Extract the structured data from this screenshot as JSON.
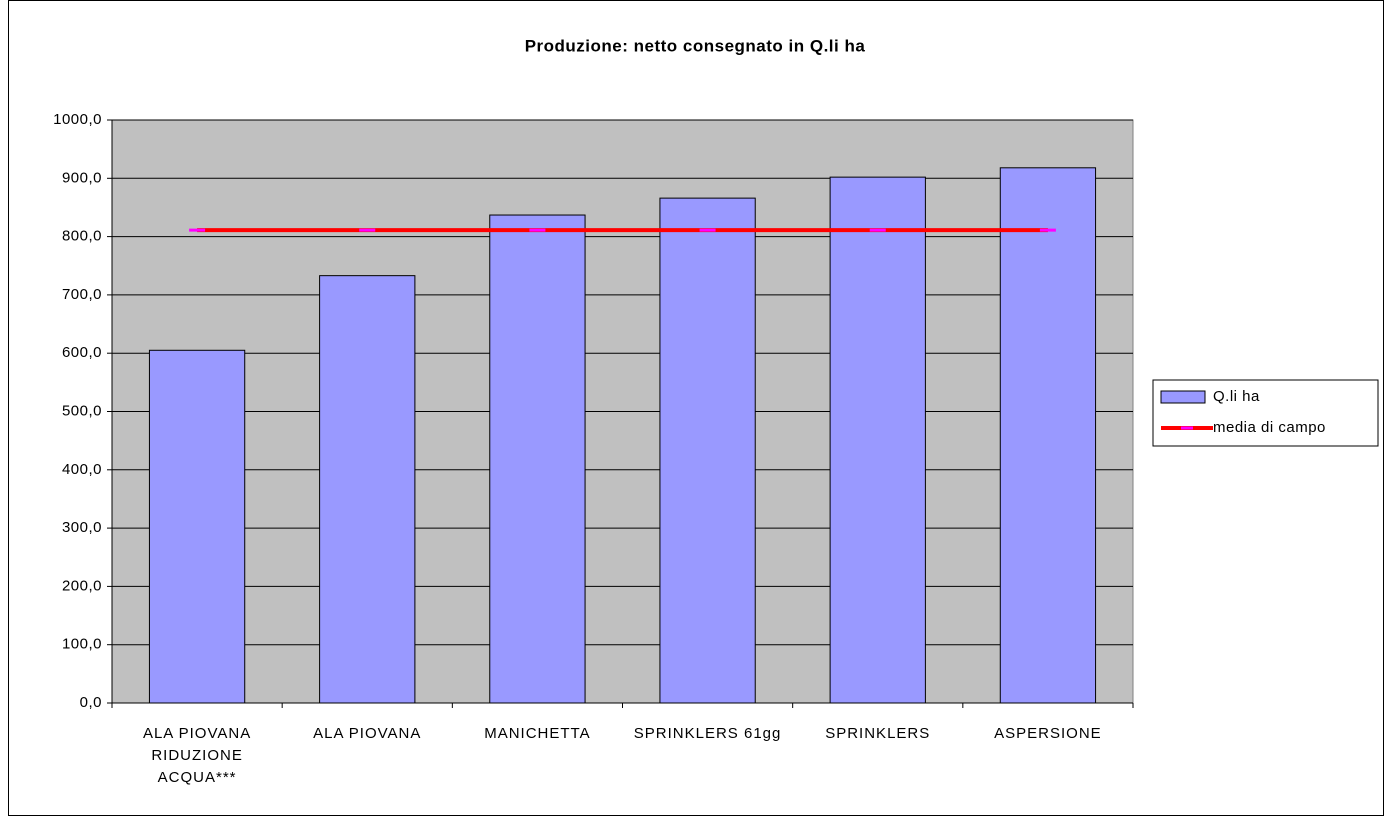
{
  "chart_data": {
    "type": "bar_line",
    "title": "Produzione: netto consegnato in Q.li ha",
    "categories": [
      "ALA PIOVANA RIDUZIONE ACQUA***",
      "ALA PIOVANA",
      "MANICHETTA",
      "SPRINKLERS 61gg",
      "SPRINKLERS",
      "ASPERSIONE"
    ],
    "series": [
      {
        "name": "Q.li ha",
        "type": "bar",
        "color": "#9999ff",
        "values": [
          605,
          733,
          837,
          866,
          902,
          918
        ]
      },
      {
        "name": "media di campo",
        "type": "line",
        "color": "#ff0000",
        "marker_color": "#ff00ff",
        "values": [
          811,
          811,
          811,
          811,
          811,
          811
        ]
      }
    ],
    "ylim": [
      0,
      1000
    ],
    "yticks": [
      {
        "value": 0,
        "label": "0,0"
      },
      {
        "value": 100,
        "label": "100,0"
      },
      {
        "value": 200,
        "label": "200,0"
      },
      {
        "value": 300,
        "label": "300,0"
      },
      {
        "value": 400,
        "label": "400,0"
      },
      {
        "value": 500,
        "label": "500,0"
      },
      {
        "value": 600,
        "label": "600,0"
      },
      {
        "value": 700,
        "label": "700,0"
      },
      {
        "value": 800,
        "label": "800,0"
      },
      {
        "value": 900,
        "label": "900,0"
      },
      {
        "value": 1000,
        "label": "1000,0"
      }
    ],
    "grid": true,
    "legend": "right",
    "plot_background": "#c0c0c0"
  }
}
